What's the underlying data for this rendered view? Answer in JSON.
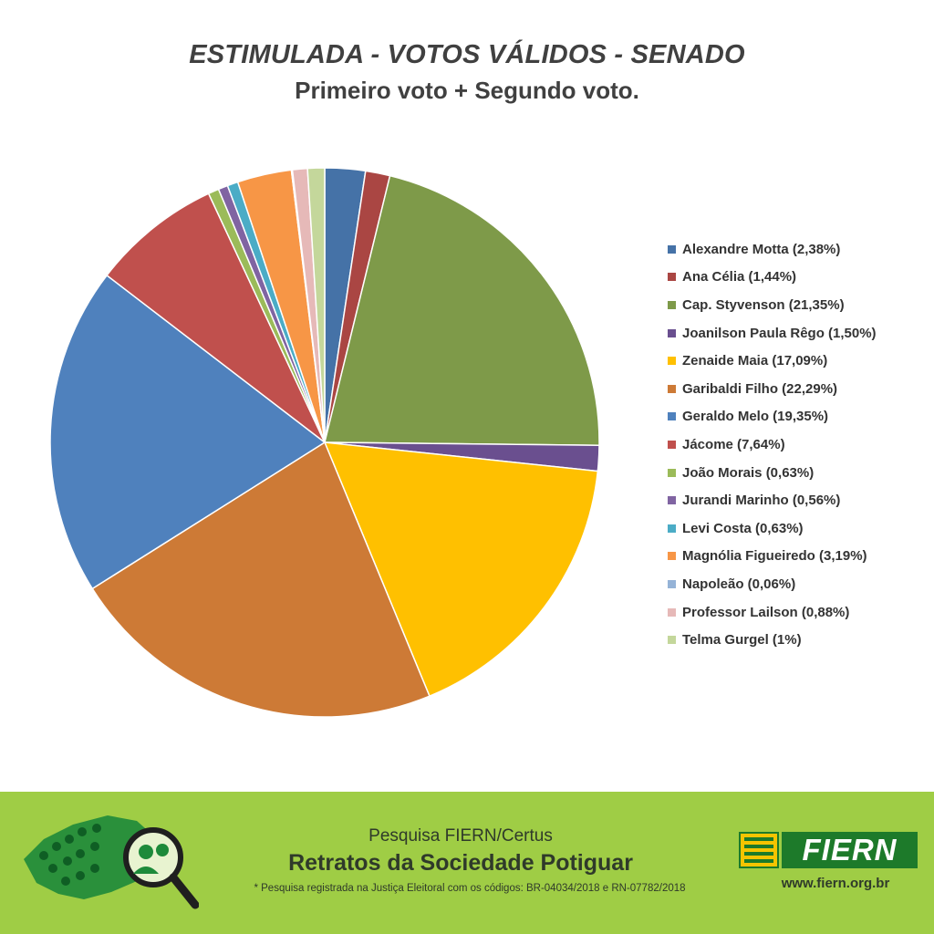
{
  "header": {
    "title": "ESTIMULADA - VOTOS VÁLIDOS - SENADO",
    "subtitle": "Primeiro voto + Segundo voto."
  },
  "chart_data": {
    "type": "pie",
    "title": "ESTIMULADA - VOTOS VÁLIDOS - SENADO",
    "subtitle": "Primeiro voto + Segundo voto.",
    "legend_position": "right",
    "series": [
      {
        "name": "Alexandre Motta",
        "value": 2.38,
        "label": "Alexandre Motta (2,38%)",
        "color": "#4572a7"
      },
      {
        "name": "Ana Célia",
        "value": 1.44,
        "label": "Ana Célia (1,44%)",
        "color": "#aa4643"
      },
      {
        "name": "Cap. Styvenson",
        "value": 21.35,
        "label": "Cap. Styvenson (21,35%)",
        "color": "#7e9a49"
      },
      {
        "name": "Joanilson Paula Rêgo",
        "value": 1.5,
        "label": "Joanilson Paula Rêgo (1,50%)",
        "color": "#6a4f8f"
      },
      {
        "name": "Zenaide Maia",
        "value": 17.09,
        "label": "Zenaide Maia (17,09%)",
        "color": "#ffc000"
      },
      {
        "name": "Garibaldi Filho",
        "value": 22.29,
        "label": "Garibaldi Filho (22,29%)",
        "color": "#cd7a36"
      },
      {
        "name": "Geraldo Melo",
        "value": 19.35,
        "label": "Geraldo Melo (19,35%)",
        "color": "#4f81bd"
      },
      {
        "name": "Jácome",
        "value": 7.64,
        "label": "Jácome (7,64%)",
        "color": "#c0504d"
      },
      {
        "name": "João Morais",
        "value": 0.63,
        "label": "João Morais (0,63%)",
        "color": "#9bbb59"
      },
      {
        "name": "Jurandi Marinho",
        "value": 0.56,
        "label": "Jurandi Marinho (0,56%)",
        "color": "#8064a2"
      },
      {
        "name": "Levi Costa",
        "value": 0.63,
        "label": "Levi Costa (0,63%)",
        "color": "#4bacc6"
      },
      {
        "name": "Magnólia Figueiredo",
        "value": 3.19,
        "label": "Magnólia Figueiredo (3,19%)",
        "color": "#f79646"
      },
      {
        "name": "Napoleão",
        "value": 0.06,
        "label": "Napoleão (0,06%)",
        "color": "#95b3d7"
      },
      {
        "name": "Professor Lailson",
        "value": 0.88,
        "label": "Professor Lailson (0,88%)",
        "color": "#e6b9b8"
      },
      {
        "name": "Telma Gurgel",
        "value": 1.0,
        "label": "Telma Gurgel (1%)",
        "color": "#c4d79b"
      }
    ]
  },
  "footer": {
    "survey": "Pesquisa FIERN/Certus",
    "survey_title": "Retratos da Sociedade Potiguar",
    "registry": "* Pesquisa registrada na Justiça Eleitoral com os códigos: BR-04034/2018 e RN-07782/2018",
    "brand": "FIERN",
    "website": "www.fiern.org.br",
    "background_color": "#9fcd45",
    "brand_green": "#1d7a2a",
    "brand_yellow": "#f5c400"
  }
}
